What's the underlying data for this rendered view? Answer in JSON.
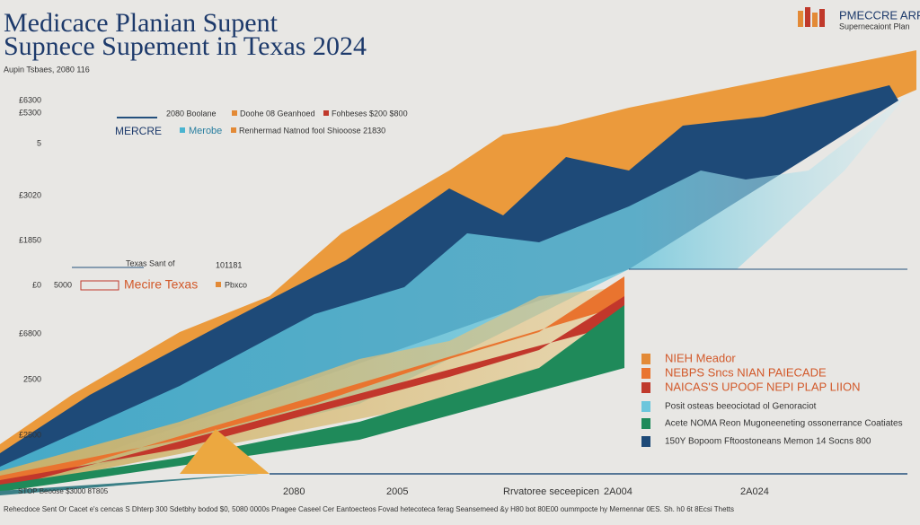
{
  "header": {
    "title_lines": [
      "Medicace Planian Supent",
      "Supnece Supement in Texas 2024"
    ],
    "subtitle": "Aupin Tsbaes, 2080 116",
    "logo_lines": [
      "PMECCRE ARR",
      "Supernecaiont Plan"
    ]
  },
  "y_labels": [
    "£6300",
    "£5300",
    "5",
    "£3020",
    "£1850",
    "£0",
    "£6800",
    "2500",
    "£2500"
  ],
  "annotations": {
    "top_1": [
      "2080 Boolane",
      "Doohe 08 Geanhoed",
      "Fohbeses $200 $800"
    ],
    "top_2": [
      "MERCRE",
      "Merobe",
      "Renhermad Natnod fool Shiooose 21830"
    ],
    "mid": [
      "Texas Sant of",
      "101181",
      "5000",
      "Mecire Texas",
      "Pbxco"
    ]
  },
  "legend": [
    "NIEH Meador",
    "NEBPS Sncs NIAN PAIECADE",
    "NAICAS'S UPOOF NEPI PLAP LIION",
    "Posit osteas beeociotad ol Genoraciot",
    "Acete NOMA Reon Mugoneeneting ossonerrance Coatiates",
    "150Y Bopoom Fftoostoneans Memon 14 Socns 800"
  ],
  "x_labels": [
    "STOP Beoose $3000 8T805",
    "2080",
    "2005",
    "Rrvatoree seceepicen",
    "2A004",
    "2A024"
  ],
  "footer": "Rehecdoce Sent Or Cacet e's cencas S Dhterp 300 Sdetbhy bodod $0, 5080 0000s Pnagee Caseel Cer Eantoecteos Fovad hetecoteca ferag Seansemeed &y H80 bot 80E00 oummpocte hy Mernennar 0ES. Sh. h0 6t 8Ecsi Thetts"
}
